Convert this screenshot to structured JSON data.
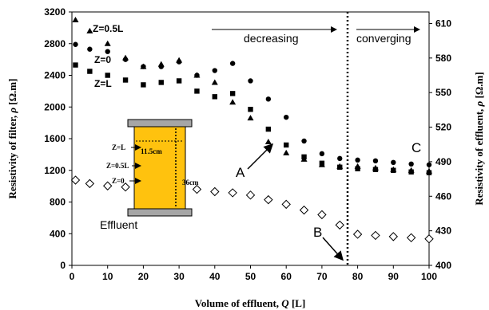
{
  "chart_data": {
    "type": "scatter",
    "title": "",
    "xlabel_prefix": "Volume of effluent, ",
    "xlabel_symbol": "Q",
    "xlabel_suffix": " [L]",
    "ylabel_left_prefix": "Resistivity of filter, ",
    "ylabel_left_symbol": "ρ",
    "ylabel_left_suffix": " [Ω.m]",
    "ylabel_right_prefix": "Resistivity of effluent, ",
    "ylabel_right_symbol": "ρ",
    "ylabel_right_suffix": " [Ω.m]",
    "xlim": [
      0,
      100
    ],
    "ylim_left": [
      0,
      3200
    ],
    "ylim_right": [
      400,
      620
    ],
    "x_ticks": [
      0,
      10,
      20,
      30,
      40,
      50,
      60,
      70,
      80,
      90,
      100
    ],
    "y_left_ticks": [
      0,
      400,
      800,
      1200,
      1600,
      2000,
      2400,
      2800,
      3200
    ],
    "y_right_ticks": [
      400,
      430,
      460,
      490,
      520,
      550,
      580,
      610
    ],
    "grid": false,
    "series": [
      {
        "name": "Z=0.5L",
        "marker": "triangle",
        "axis": "left",
        "x": [
          1,
          5,
          10,
          15,
          20,
          25,
          30,
          35,
          40,
          45,
          50,
          55,
          60,
          65,
          70,
          75,
          80,
          85,
          90,
          95,
          100
        ],
        "values": [
          3100,
          2960,
          2800,
          2620,
          2510,
          2540,
          2590,
          2400,
          2310,
          2060,
          1860,
          1560,
          1420,
          1340,
          1270,
          1250,
          1250,
          1230,
          1210,
          1200,
          1190
        ]
      },
      {
        "name": "Z=0",
        "marker": "circle",
        "axis": "left",
        "x": [
          1,
          5,
          10,
          15,
          20,
          25,
          30,
          35,
          40,
          45,
          50,
          55,
          60,
          65,
          70,
          75,
          80,
          85,
          90,
          95,
          100
        ],
        "values": [
          2790,
          2730,
          2700,
          2600,
          2510,
          2510,
          2570,
          2400,
          2460,
          2550,
          2330,
          2100,
          1870,
          1570,
          1410,
          1350,
          1330,
          1320,
          1300,
          1280,
          1270
        ]
      },
      {
        "name": "Z=L",
        "marker": "square",
        "axis": "left",
        "x": [
          1,
          5,
          10,
          15,
          20,
          25,
          30,
          35,
          40,
          45,
          50,
          55,
          60,
          65,
          70,
          75,
          80,
          85,
          90,
          95,
          100
        ],
        "values": [
          2530,
          2450,
          2400,
          2340,
          2280,
          2310,
          2330,
          2200,
          2130,
          2170,
          1970,
          1720,
          1520,
          1370,
          1290,
          1240,
          1220,
          1210,
          1200,
          1180,
          1170
        ]
      },
      {
        "name": "Effluent",
        "marker": "diamond-open",
        "axis": "right",
        "x": [
          1,
          5,
          10,
          15,
          20,
          25,
          30,
          35,
          40,
          45,
          50,
          55,
          60,
          65,
          70,
          75,
          80,
          85,
          90,
          95,
          100
        ],
        "values": [
          474,
          471,
          469,
          468,
          467,
          466,
          465,
          466,
          464,
          463,
          461,
          457,
          453,
          448,
          444,
          435,
          427,
          426,
          425,
          424,
          423
        ]
      }
    ]
  },
  "annotations": {
    "decreasing": "decreasing",
    "converging": "converging",
    "A": "A",
    "B": "B",
    "C": "C"
  },
  "inset": {
    "width_label": "11.5cm",
    "height_label": "36cm",
    "labels": [
      "Z=L",
      "Z=0.5L",
      "Z=0"
    ]
  },
  "colors": {
    "fill": "#FFC20E",
    "plate": "#A6A6A6",
    "ink": "#000000"
  }
}
